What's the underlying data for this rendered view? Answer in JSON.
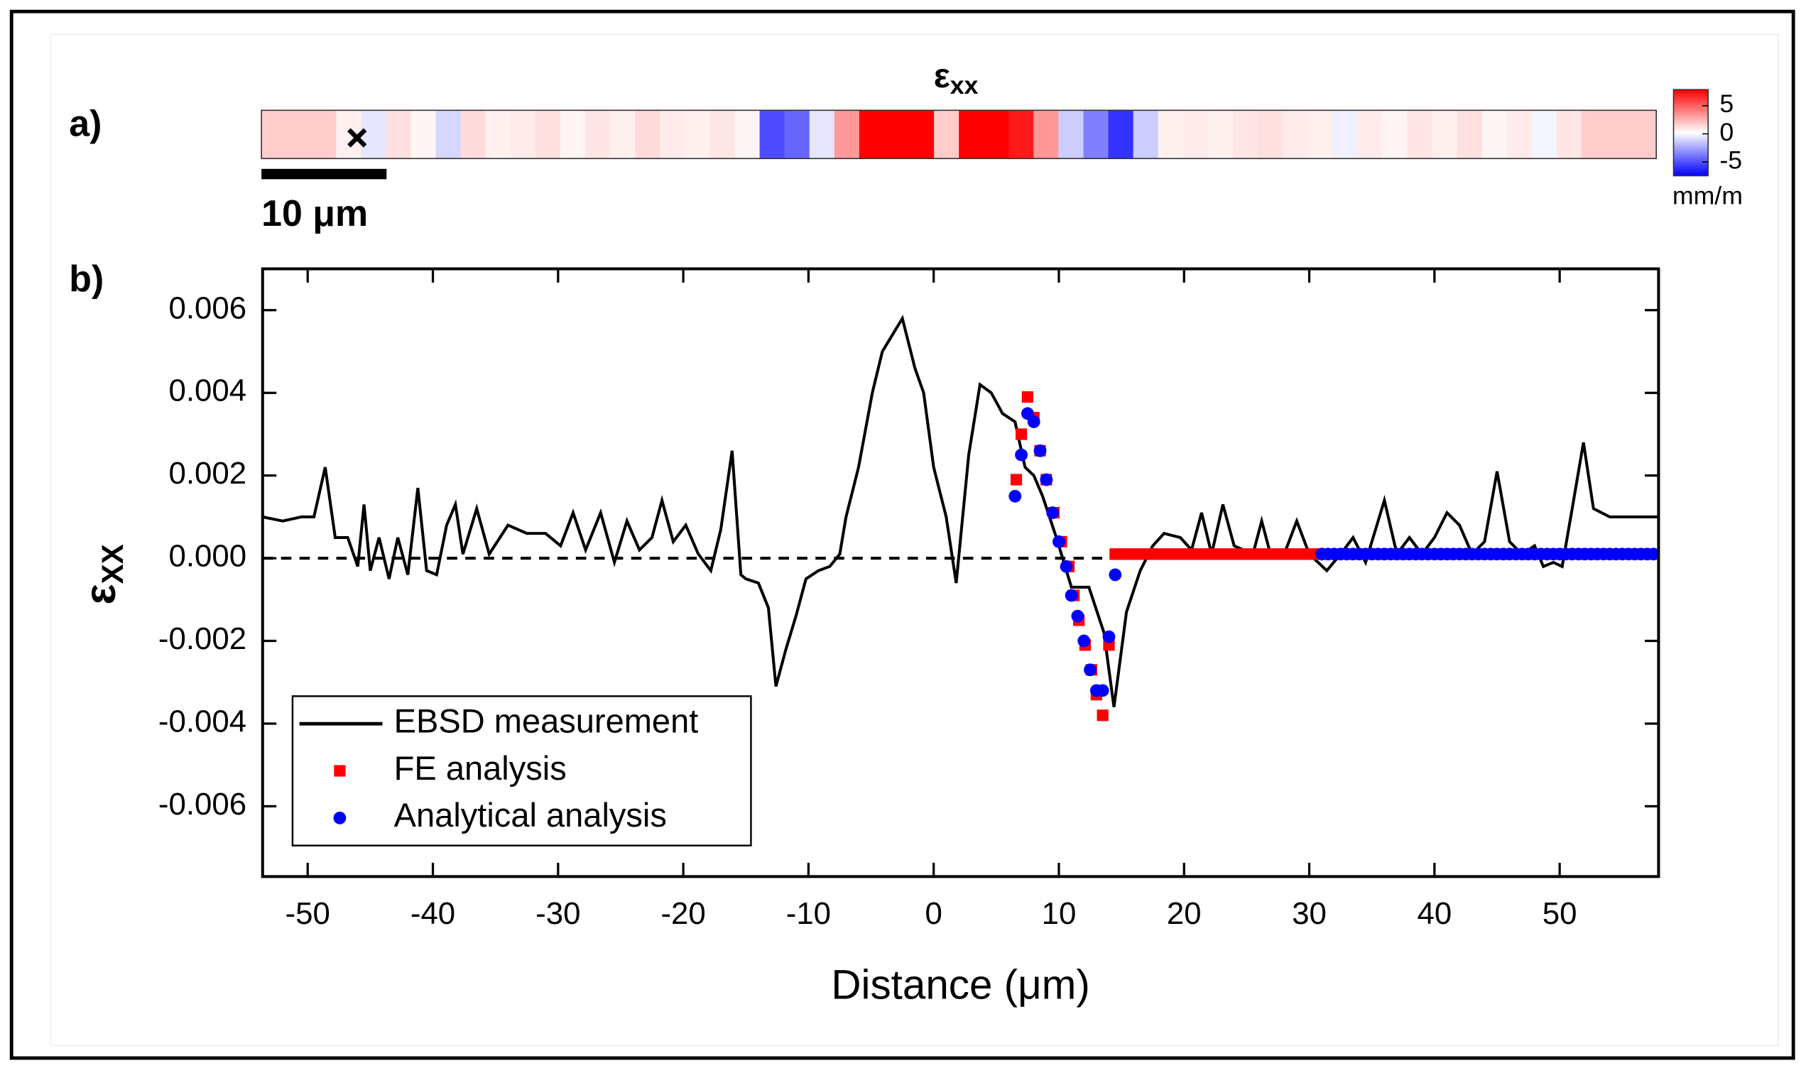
{
  "chart_data": [
    {
      "type": "heatmap",
      "panel_label": "a)",
      "title": "ε",
      "title_subscript": "xx",
      "values": [
        1,
        1,
        1,
        0.3,
        -0.5,
        0.6,
        0.2,
        -0.8,
        0.7,
        0.3,
        0.4,
        0.6,
        0.2,
        0.5,
        0.3,
        0.7,
        0.4,
        0.3,
        0.5,
        0.2,
        -3.5,
        -3,
        -0.5,
        2,
        5.5,
        5.5,
        5,
        1,
        5,
        5.5,
        4.5,
        2,
        -1,
        -2.5,
        -4,
        -1,
        0.3,
        0.4,
        0.3,
        0.5,
        0.6,
        0.4,
        0.3,
        -0.3,
        0.4,
        0.2,
        0.5,
        0.3,
        0.6,
        0.2,
        0.4,
        -0.2,
        0.5,
        1,
        1,
        1
      ],
      "xlim": [
        -53.6,
        57.9
      ],
      "zlim": [
        -5,
        5
      ],
      "colorbar_ticks": [
        5,
        0,
        -5
      ],
      "colorbar_label": "mm/m",
      "colors": [
        "#0000ff",
        "#ffffff",
        "#ff0000"
      ],
      "scale_bar": {
        "length": 10,
        "label": "10 μm"
      }
    },
    {
      "type": "line",
      "panel_label": "b)",
      "xlabel": "Distance (μm)",
      "ylabel": "ε",
      "ylabel_subscript": "XX",
      "xlim": [
        -53.6,
        57.9
      ],
      "ylim": [
        -0.0077,
        0.007
      ],
      "xticks": [
        -50,
        -40,
        -30,
        -20,
        -10,
        0,
        10,
        20,
        30,
        40,
        50
      ],
      "yticks": [
        {
          "value": 0.006,
          "label": "0.006"
        },
        {
          "value": 0.004,
          "label": "0.004"
        },
        {
          "value": 0.002,
          "label": "0.002"
        },
        {
          "value": 0,
          "label": "0.000"
        },
        {
          "value": -0.002,
          "label": "-0.002"
        },
        {
          "value": -0.004,
          "label": "-0.004"
        },
        {
          "value": -0.006,
          "label": "-0.006"
        }
      ],
      "zero_line": true,
      "legend": "lower left",
      "series": [
        {
          "name": "EBSD measurement",
          "type": "line",
          "color": "#000000",
          "x": [
            -53.6,
            -52,
            -50.5,
            -49.5,
            -48.6,
            -47.8,
            -46.8,
            -46,
            -45.5,
            -45,
            -44.3,
            -43.5,
            -42.8,
            -42,
            -41.2,
            -40.5,
            -39.7,
            -38.9,
            -38.2,
            -37.6,
            -36.5,
            -35.5,
            -34,
            -32.5,
            -31,
            -29.8,
            -28.8,
            -27.8,
            -26.6,
            -25.5,
            -24.5,
            -23.5,
            -22.5,
            -21.7,
            -20.8,
            -19.8,
            -18.8,
            -17.8,
            -17,
            -16.1,
            -15.4,
            -15,
            -14,
            -13.2,
            -12.6,
            -11.8,
            -11,
            -10.2,
            -9.2,
            -8.3,
            -7.5,
            -7,
            -6,
            -4.9,
            -4.1,
            -3.3,
            -2.5,
            -1.5,
            -0.8,
            0,
            1,
            1.8,
            2.8,
            3.7,
            4.6,
            5.5,
            6.5,
            7.3,
            8,
            8.7,
            9.8,
            11,
            12.4,
            13.6,
            14.4,
            15.4,
            16.5,
            17.5,
            18.4,
            19.7,
            20.6,
            21.4,
            22.2,
            23.1,
            24,
            25.5,
            26.2,
            26.9,
            28,
            29,
            30,
            31.4,
            32.5,
            33.5,
            34.5,
            36,
            37,
            38,
            39,
            40,
            41,
            42,
            43,
            44,
            45,
            46,
            47,
            48,
            48.7,
            49.5,
            50.2,
            51,
            51.9,
            52.7,
            54,
            55.5,
            57,
            57.9
          ],
          "values": [
            0.001,
            0.0009,
            0.001,
            0.001,
            0.0022,
            0.0005,
            0.0005,
            -0.0002,
            0.0013,
            -0.0003,
            0.0005,
            -0.0005,
            0.0005,
            -0.0004,
            0.0017,
            -0.0003,
            -0.0004,
            0.0008,
            0.0013,
            0.0001,
            0.0012,
            0.0001,
            0.0008,
            0.0006,
            0.0006,
            0.0003,
            0.0011,
            0.0002,
            0.0011,
            -0.0001,
            0.0009,
            0.0002,
            0.0005,
            0.0014,
            0.0004,
            0.0008,
            0.0001,
            -0.0003,
            0.0007,
            0.0026,
            -0.0004,
            -0.0005,
            -0.0006,
            -0.0012,
            -0.0031,
            -0.0022,
            -0.0014,
            -0.0005,
            -0.0003,
            -0.0002,
            0.0001,
            0.001,
            0.0022,
            0.004,
            0.005,
            0.0054,
            0.0058,
            0.0046,
            0.004,
            0.0022,
            0.001,
            -0.0006,
            0.0025,
            0.0042,
            0.004,
            0.0035,
            0.0033,
            0.0022,
            0.002,
            0.0015,
            0.0005,
            -0.0007,
            -0.0007,
            -0.0018,
            -0.0036,
            -0.0013,
            -0.0003,
            0.0003,
            0.0006,
            0.0005,
            0.0002,
            0.0011,
            0.0001,
            0.0013,
            0.0003,
            0.0001,
            0.0009,
            0.0001,
            0.0001,
            0.0009,
            0.0001,
            -0.0003,
            0.0001,
            0.0005,
            -0.0001,
            0.0014,
            0.0001,
            0.0005,
            0.0001,
            0.0005,
            0.0011,
            0.0008,
            0.0001,
            0.0004,
            0.0021,
            0.0004,
            0.0001,
            0.0003,
            -0.0002,
            -0.0001,
            -0.0002,
            0.0012,
            0.0028,
            0.0012,
            0.001,
            0.001,
            0.001,
            0.001
          ]
        },
        {
          "name": "FE analysis",
          "type": "square",
          "color": "#ff0000",
          "x": [
            6.6,
            7,
            7.5,
            8,
            8.5,
            9,
            9.6,
            10.2,
            10.8,
            11.2,
            11.6,
            12.1,
            12.6,
            13,
            13.5,
            14,
            14.5,
            15,
            15.5,
            16,
            16.5,
            17,
            17.5,
            18,
            18.5,
            19,
            19.5,
            20,
            20.5,
            21,
            21.5,
            22,
            22.5,
            23,
            23.5,
            24,
            24.5,
            25,
            25.5,
            26,
            26.5,
            27,
            27.5,
            28,
            28.5,
            29,
            29.5,
            30,
            30.5,
            31
          ],
          "values": [
            0.0019,
            0.003,
            0.0039,
            0.0034,
            0.0026,
            0.0019,
            0.0011,
            0.0004,
            -0.0002,
            -0.0009,
            -0.0015,
            -0.0021,
            -0.0027,
            -0.0033,
            -0.0038,
            -0.0021,
            0.0001,
            0.0001,
            0.0001,
            0.0001,
            0.0001,
            0.0001,
            0.0001,
            0.0001,
            0.0001,
            0.0001,
            0.0001,
            0.0001,
            0.0001,
            0.0001,
            0.0001,
            0.0001,
            0.0001,
            0.0001,
            0.0001,
            0.0001,
            0.0001,
            0.0001,
            0.0001,
            0.0001,
            0.0001,
            0.0001,
            0.0001,
            0.0001,
            0.0001,
            0.0001,
            0.0001,
            0.0001,
            0.0001,
            0.0001
          ]
        },
        {
          "name": "Analytical analysis",
          "type": "circle",
          "color": "#0000ff",
          "x": [
            6.5,
            7,
            7.5,
            8,
            8.5,
            9,
            9.5,
            10,
            10.6,
            11,
            11.5,
            12,
            12.5,
            13,
            13.5,
            14,
            14.5,
            31,
            31.5,
            32,
            32.5,
            33,
            33.5,
            34,
            34.5,
            35,
            35.5,
            36,
            36.5,
            37,
            37.5,
            38,
            38.5,
            39,
            39.5,
            40,
            40.5,
            41,
            41.5,
            42,
            42.5,
            43,
            43.5,
            44,
            44.5,
            45,
            45.5,
            46,
            46.5,
            47,
            47.5,
            48,
            48.5,
            49,
            49.5,
            50,
            50.5,
            51,
            51.5,
            52,
            52.5,
            53,
            53.5,
            54,
            54.5,
            55,
            55.5,
            56,
            56.5,
            57,
            57.5
          ],
          "values": [
            0.0015,
            0.0025,
            0.0035,
            0.0033,
            0.0026,
            0.0019,
            0.0011,
            0.0004,
            -0.0002,
            -0.0009,
            -0.0014,
            -0.002,
            -0.0027,
            -0.0032,
            -0.0032,
            -0.0019,
            -0.0004,
            0.0001,
            0.0001,
            0.0001,
            0.0001,
            0.0001,
            0.0001,
            0.0001,
            0.0001,
            0.0001,
            0.0001,
            0.0001,
            0.0001,
            0.0001,
            0.0001,
            0.0001,
            0.0001,
            0.0001,
            0.0001,
            0.0001,
            0.0001,
            0.0001,
            0.0001,
            0.0001,
            0.0001,
            0.0001,
            0.0001,
            0.0001,
            0.0001,
            0.0001,
            0.0001,
            0.0001,
            0.0001,
            0.0001,
            0.0001,
            0.0001,
            0.0001,
            0.0001,
            0.0001,
            0.0001,
            0.0001,
            0.0001,
            0.0001,
            0.0001,
            0.0001,
            0.0001,
            0.0001,
            0.0001,
            0.0001,
            0.0001,
            0.0001,
            0.0001,
            0.0001,
            0.0001,
            0.0001
          ]
        }
      ]
    }
  ]
}
